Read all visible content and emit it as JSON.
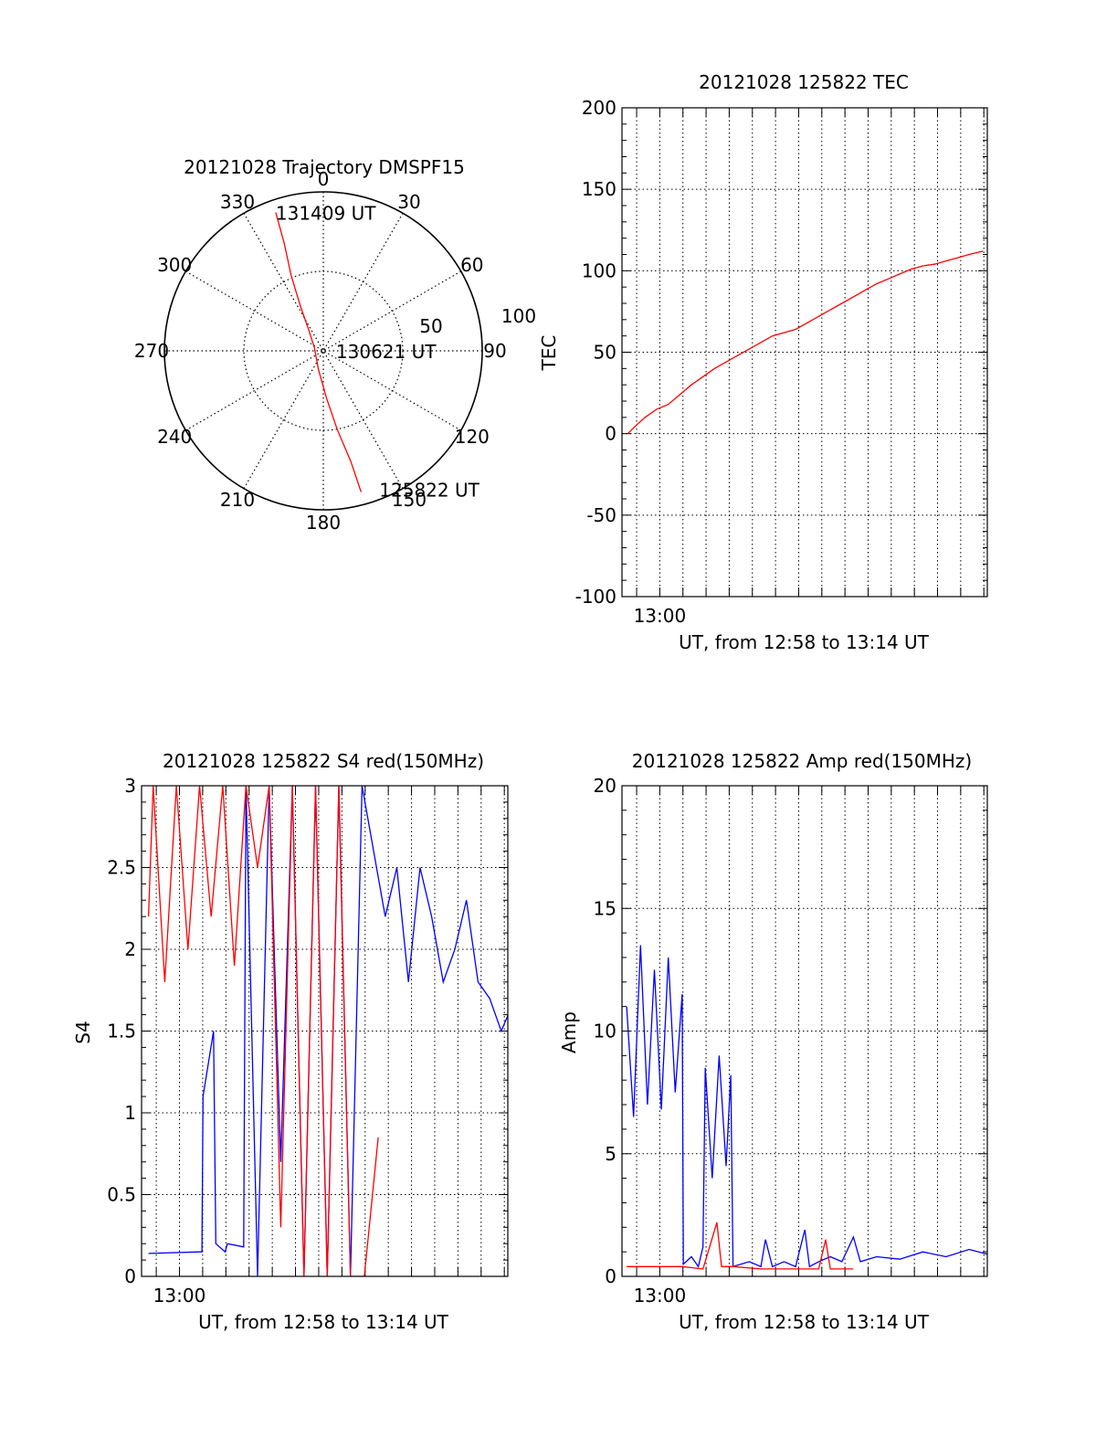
{
  "chart_data": [
    {
      "type": "polar",
      "title": "20121028 Trajectory DMSPF15",
      "azimuth_labels": [
        "0",
        "30",
        "60",
        "90",
        "120",
        "150",
        "180",
        "210",
        "240",
        "270",
        "300",
        "330"
      ],
      "radial_labels": [
        "50",
        "100"
      ],
      "rlim": [
        0,
        100
      ],
      "grid": true,
      "series": [
        {
          "color": "#ff0000",
          "points": [
            [
              341,
              92
            ],
            [
              340,
              72
            ],
            [
              337,
              52
            ],
            [
              333,
              32
            ],
            [
              325,
              16
            ],
            [
              290,
              6
            ],
            [
              195,
              12
            ],
            [
              176,
              30
            ],
            [
              170,
              50
            ],
            [
              166,
              72
            ],
            [
              165,
              92
            ]
          ]
        }
      ],
      "annotations": [
        {
          "text": "131409 UT",
          "az": 341,
          "r": 92
        },
        {
          "text": "130621 UT",
          "az": 90,
          "r": 8
        },
        {
          "text": "125822 UT",
          "az": 158,
          "r": 94
        }
      ]
    },
    {
      "type": "line",
      "title": "20121028 125822 TEC",
      "xlabel": "UT, from 12:58 to 13:14 UT",
      "ylabel": "TEC",
      "xlim": [
        "12:58:22",
        "13:14:09"
      ],
      "ylim": [
        -100,
        200
      ],
      "yticks": [
        "200",
        "150",
        "100",
        "50",
        "0",
        "-50",
        "-100"
      ],
      "xtick_labels": [
        {
          "label": "13:00",
          "at": "13:00"
        }
      ],
      "grid": true,
      "series": [
        {
          "color": "#ff0000",
          "points": [
            [
              0.25,
              0
            ],
            [
              0.6,
              5
            ],
            [
              1,
              10
            ],
            [
              1.5,
              15
            ],
            [
              2,
              18
            ],
            [
              2.5,
              24
            ],
            [
              3,
              30
            ],
            [
              3.5,
              35
            ],
            [
              4,
              40
            ],
            [
              4.5,
              44
            ],
            [
              5,
              48
            ],
            [
              5.5,
              52
            ],
            [
              6,
              56
            ],
            [
              6.5,
              60
            ],
            [
              7,
              62
            ],
            [
              7.5,
              64
            ],
            [
              8,
              68
            ],
            [
              8.5,
              72
            ],
            [
              9,
              76
            ],
            [
              9.5,
              80
            ],
            [
              10,
              84
            ],
            [
              10.5,
              88
            ],
            [
              11,
              92
            ],
            [
              11.5,
              95
            ],
            [
              12,
              98
            ],
            [
              12.5,
              101
            ],
            [
              13,
              103
            ],
            [
              13.5,
              104
            ],
            [
              14,
              106
            ],
            [
              14.5,
              108
            ],
            [
              15,
              110
            ],
            [
              15.6,
              112
            ]
          ]
        }
      ]
    },
    {
      "type": "line",
      "title": "20121028 125822 S4 red(150MHz)",
      "xlabel": "UT, from 12:58 to 13:14 UT",
      "ylabel": "S4",
      "xlim": [
        "12:58:22",
        "13:14:09"
      ],
      "ylim": [
        0,
        3
      ],
      "yticks": [
        "3",
        "2.5",
        "2",
        "1.5",
        "1",
        "0.5",
        "0"
      ],
      "xtick_labels": [
        {
          "label": "13:00",
          "at": "13:00"
        }
      ],
      "grid": true,
      "series": [
        {
          "color": "#0000ff",
          "points": [
            [
              0.3,
              0.14
            ],
            [
              2.5,
              0.15
            ],
            [
              2.6,
              0.15
            ],
            [
              2.65,
              1.1
            ],
            [
              3.1,
              1.5
            ],
            [
              3.2,
              0.2
            ],
            [
              3.6,
              0.15
            ],
            [
              3.7,
              0.2
            ],
            [
              4.4,
              0.18
            ],
            [
              4.5,
              3
            ],
            [
              5,
              0
            ],
            [
              5.5,
              3
            ],
            [
              6,
              0.7
            ],
            [
              6.5,
              3
            ],
            [
              7,
              0
            ],
            [
              7.5,
              3
            ],
            [
              8,
              0
            ],
            [
              8.5,
              3
            ],
            [
              9,
              0
            ],
            [
              9.5,
              3
            ],
            [
              10,
              2.6
            ],
            [
              10.5,
              2.2
            ],
            [
              11,
              2.5
            ],
            [
              11.5,
              1.8
            ],
            [
              12,
              2.5
            ],
            [
              12.5,
              2.2
            ],
            [
              13,
              1.8
            ],
            [
              13.5,
              2.0
            ],
            [
              14,
              2.3
            ],
            [
              14.5,
              1.8
            ],
            [
              15,
              1.7
            ],
            [
              15.5,
              1.5
            ],
            [
              15.8,
              1.6
            ]
          ]
        },
        {
          "color": "#ff0000",
          "points": [
            [
              0.3,
              2.2
            ],
            [
              0.5,
              3
            ],
            [
              1,
              1.8
            ],
            [
              1.5,
              3
            ],
            [
              2,
              2.0
            ],
            [
              2.5,
              3
            ],
            [
              3,
              2.2
            ],
            [
              3.5,
              3
            ],
            [
              4,
              1.9
            ],
            [
              4.5,
              3
            ],
            [
              5,
              2.5
            ],
            [
              5.5,
              3
            ],
            [
              6,
              0.3
            ],
            [
              6.5,
              3
            ],
            [
              7,
              0
            ],
            [
              7.5,
              3
            ],
            [
              8,
              0
            ],
            [
              8.5,
              3
            ],
            [
              9,
              0
            ],
            [
              9.6,
              0
            ],
            [
              10.2,
              0.85
            ]
          ]
        }
      ]
    },
    {
      "type": "line",
      "title": "20121028 125822 Amp red(150MHz)",
      "xlabel": "UT, from 12:58 to 13:14 UT",
      "ylabel": "Amp",
      "xlim": [
        "12:58:22",
        "13:14:09"
      ],
      "ylim": [
        0,
        20
      ],
      "yticks": [
        "20",
        "15",
        "10",
        "5",
        "0"
      ],
      "xtick_labels": [
        {
          "label": "13:00",
          "at": "13:00"
        }
      ],
      "grid": true,
      "series": [
        {
          "color": "#0000ff",
          "points": [
            [
              0.2,
              11
            ],
            [
              0.5,
              6.5
            ],
            [
              0.8,
              13.5
            ],
            [
              1.1,
              7
            ],
            [
              1.4,
              12.5
            ],
            [
              1.7,
              6.8
            ],
            [
              2,
              13
            ],
            [
              2.3,
              7.5
            ],
            [
              2.6,
              11.5
            ],
            [
              2.65,
              0.5
            ],
            [
              3,
              0.8
            ],
            [
              3.3,
              0.4
            ],
            [
              3.5,
              1.2
            ],
            [
              3.6,
              8.5
            ],
            [
              3.9,
              4
            ],
            [
              4.2,
              9
            ],
            [
              4.5,
              4.5
            ],
            [
              4.7,
              8.2
            ],
            [
              4.8,
              0.4
            ],
            [
              5.5,
              0.6
            ],
            [
              6,
              0.4
            ],
            [
              6.2,
              1.5
            ],
            [
              6.5,
              0.4
            ],
            [
              7,
              0.6
            ],
            [
              7.5,
              0.4
            ],
            [
              7.9,
              1.9
            ],
            [
              8.1,
              0.4
            ],
            [
              8.5,
              0.6
            ],
            [
              9,
              0.8
            ],
            [
              9.5,
              0.6
            ],
            [
              10,
              1.6
            ],
            [
              10.3,
              0.6
            ],
            [
              11,
              0.8
            ],
            [
              12,
              0.7
            ],
            [
              13,
              1.0
            ],
            [
              14,
              0.8
            ],
            [
              15,
              1.1
            ],
            [
              15.8,
              0.9
            ]
          ]
        },
        {
          "color": "#ff0000",
          "points": [
            [
              0.2,
              0.4
            ],
            [
              2.6,
              0.4
            ],
            [
              3.5,
              0.3
            ],
            [
              4.1,
              2.2
            ],
            [
              4.3,
              0.4
            ],
            [
              4.8,
              0.4
            ],
            [
              6,
              0.3
            ],
            [
              8.5,
              0.3
            ],
            [
              8.8,
              1.5
            ],
            [
              9,
              0.3
            ],
            [
              10,
              0.3
            ]
          ]
        }
      ]
    }
  ]
}
